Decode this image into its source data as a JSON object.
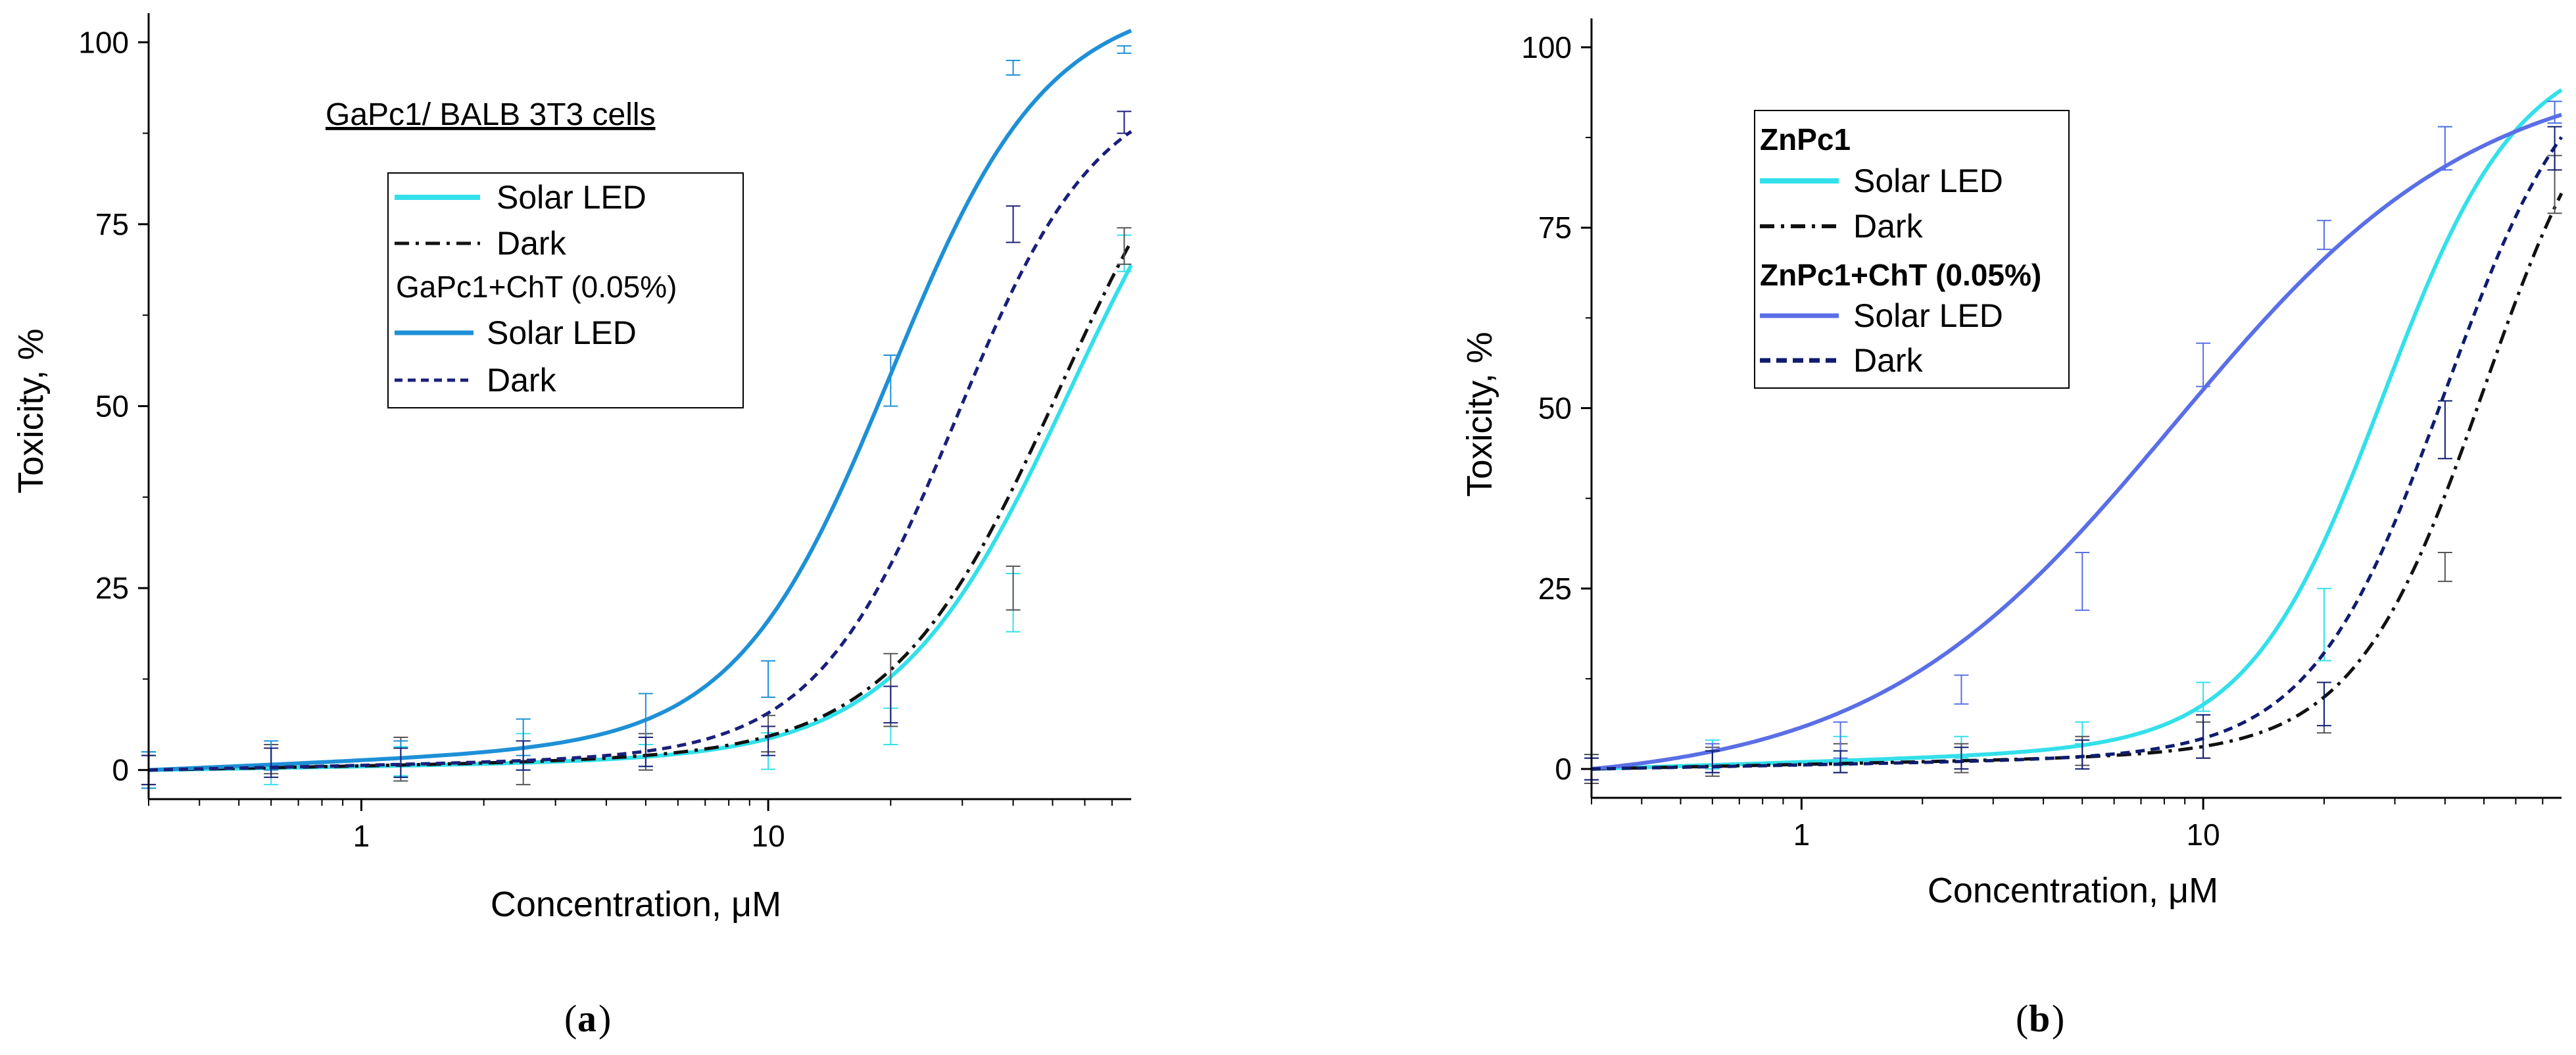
{
  "chart_data": [
    {
      "type": "line",
      "panel": "a",
      "panel_label": "a",
      "annotation": "GaPc1/ BALB 3T3 cells",
      "xlabel": "Concentration, μM",
      "ylabel": "Toxicity, %",
      "xscale": "log",
      "xlim": [
        0.3,
        78
      ],
      "ylim": [
        -4,
        104
      ],
      "xticks": [
        1,
        10
      ],
      "xtick_labels": [
        "1",
        "10"
      ],
      "yticks": [
        0,
        25,
        50,
        75,
        100
      ],
      "ytick_labels": [
        "0",
        "25",
        "50",
        "75",
        "100"
      ],
      "legend_position": "upper-center",
      "legend": {
        "headers": [
          "GaPc1+ChT (0.05%)"
        ],
        "entries": [
          "Solar LED",
          "Dark",
          "Solar LED",
          "Dark"
        ]
      },
      "x_points": [
        0.3,
        0.6,
        1.25,
        2.5,
        5,
        10,
        20,
        40,
        75
      ],
      "series": [
        {
          "name": "Solar LED",
          "group": "GaPc1",
          "color": "#33e0ea",
          "dash": "solid",
          "curve": {
            "bottom": 0,
            "top": 100,
            "ec50": 55,
            "hill": 2.05,
            "baseline_slope": 0.3
          },
          "points": [
            0,
            0.5,
            1.2,
            2.5,
            2.0,
            2.6,
            6.0,
            23,
            71
          ],
          "errors": [
            2.5,
            2.5,
            2.0,
            2.5,
            1.5,
            2.5,
            2.5,
            4.0,
            2.5
          ]
        },
        {
          "name": "Dark",
          "group": "GaPc1",
          "color": "#111111",
          "dash": "dashdot",
          "curve": {
            "bottom": 0,
            "top": 100,
            "ec50": 52,
            "hill": 2.1,
            "baseline_slope": 0.35
          },
          "points": [
            0,
            1.5,
            1.5,
            1.0,
            2.5,
            5.0,
            11,
            25,
            72
          ],
          "errors": [
            2.0,
            2.0,
            3.0,
            3.0,
            2.5,
            2.5,
            5.0,
            3.0,
            2.5
          ]
        },
        {
          "name": "Solar LED",
          "group": "GaPc1+ChT (0.05%)",
          "color": "#1e90d6",
          "dash": "solid",
          "curve": {
            "bottom": 0,
            "top": 100,
            "ec50": 20,
            "hill": 2.3,
            "baseline_slope": 0.8
          },
          "points": [
            0,
            2.0,
            1.5,
            4.5,
            7.5,
            12.5,
            53.5,
            96.5,
            99
          ],
          "errors": [
            2.5,
            2.0,
            2.5,
            2.5,
            3.0,
            2.5,
            3.5,
            1.0,
            0.5
          ]
        },
        {
          "name": "Dark",
          "group": "GaPc1+ChT (0.05%)",
          "color": "#1a1f7a",
          "dash": "dashed",
          "curve": {
            "bottom": 0,
            "top": 92,
            "ec50": 29,
            "hill": 2.5,
            "baseline_slope": 0.4
          },
          "points": [
            0,
            1.0,
            1.0,
            2.0,
            2.5,
            4.0,
            9.0,
            75,
            89
          ],
          "errors": [
            2.0,
            2.0,
            2.0,
            2.0,
            2.0,
            2.0,
            2.5,
            2.5,
            1.5
          ]
        }
      ]
    },
    {
      "type": "line",
      "panel": "b",
      "panel_label": "b",
      "xlabel": "Concentration, μM",
      "ylabel": "Toxicity, %",
      "xscale": "log",
      "xlim": [
        0.3,
        78
      ],
      "ylim": [
        -4,
        104
      ],
      "xticks": [
        1,
        10
      ],
      "xtick_labels": [
        "1",
        "10"
      ],
      "yticks": [
        0,
        25,
        50,
        75,
        100
      ],
      "ytick_labels": [
        "0",
        "25",
        "50",
        "75",
        "100"
      ],
      "legend_position": "upper-left",
      "legend": {
        "headers": [
          "ZnPc1",
          "ZnPc1+ChT (0.05%)"
        ],
        "entries": [
          "Solar LED",
          "Dark",
          "Solar LED",
          "Dark"
        ]
      },
      "x_points": [
        0.3,
        0.6,
        1.25,
        2.5,
        5,
        10,
        20,
        40,
        75
      ],
      "series": [
        {
          "name": "Solar LED",
          "group": "ZnPc1",
          "color": "#33e0ea",
          "dash": "solid",
          "curve": {
            "bottom": 0,
            "top": 96,
            "ec50": 28,
            "hill": 2.6,
            "baseline_slope": 0.6
          },
          "points": [
            0,
            2.0,
            2.5,
            3.0,
            5.0,
            10,
            20,
            86,
            91
          ],
          "errors": [
            2.0,
            2.0,
            2.0,
            1.5,
            1.5,
            2.0,
            5.0,
            3.0,
            1.5
          ]
        },
        {
          "name": "Dark",
          "group": "ZnPc1",
          "color": "#111111",
          "dash": "dashdot",
          "curve": {
            "bottom": 0,
            "top": 100,
            "ec50": 50,
            "hill": 2.7,
            "baseline_slope": 0.4
          },
          "points": [
            0,
            1.0,
            1.5,
            1.5,
            2.5,
            4.0,
            8.5,
            28,
            81
          ],
          "errors": [
            2.0,
            2.0,
            2.0,
            2.0,
            2.0,
            2.5,
            3.5,
            2.0,
            4.0
          ]
        },
        {
          "name": "Solar LED",
          "group": "ZnPc1+ChT (0.05%)",
          "color": "#5a6fe6",
          "dash": "solid",
          "curve": {
            "bottom": 0,
            "top": 100,
            "ec50": 8.5,
            "hill": 1.15,
            "baseline_slope": 0
          },
          "points": [
            0,
            1.5,
            4.0,
            11,
            26,
            56,
            74,
            86,
            91
          ],
          "errors": [
            1.5,
            2.0,
            2.5,
            2.0,
            4.0,
            3.0,
            2.0,
            3.0,
            1.5
          ]
        },
        {
          "name": "Dark",
          "group": "ZnPc1+ChT (0.05%)",
          "color": "#0f1c6e",
          "dash": "dashed",
          "curve": {
            "bottom": 0,
            "top": 100,
            "ec50": 40,
            "hill": 2.6,
            "baseline_slope": 0.35
          },
          "points": [
            0,
            1.0,
            1.0,
            1.5,
            2.0,
            4.5,
            9.0,
            47,
            86
          ],
          "errors": [
            1.5,
            1.5,
            1.5,
            1.5,
            2.0,
            3.0,
            3.0,
            4.0,
            3.0
          ]
        }
      ]
    }
  ]
}
